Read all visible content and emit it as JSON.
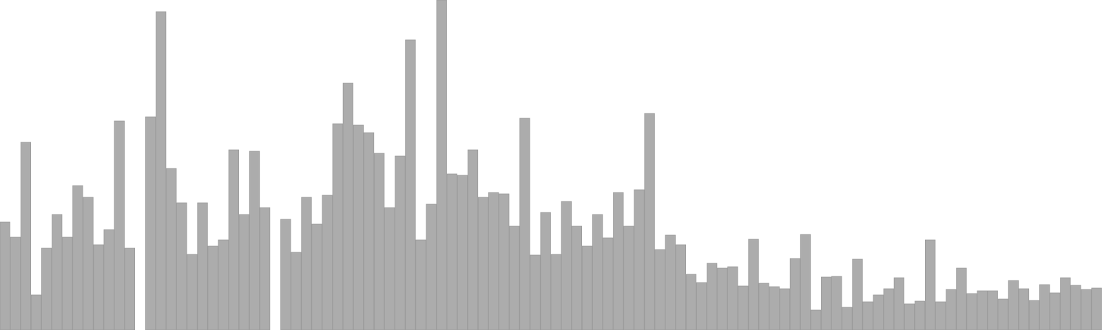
{
  "chart_data": {
    "type": "bar",
    "title": "",
    "xlabel": "",
    "ylabel": "",
    "bar_color": "#acacac",
    "bar_stroke": "#9a9a9a",
    "background": "#ffffff",
    "grid": false,
    "legend": "none",
    "ylim": [
      0,
      480
    ],
    "values": [
      157,
      135,
      273,
      51,
      119,
      168,
      135,
      210,
      193,
      124,
      146,
      304,
      119,
      0,
      310,
      463,
      235,
      185,
      110,
      185,
      122,
      131,
      262,
      168,
      260,
      178,
      0,
      161,
      113,
      193,
      154,
      196,
      300,
      359,
      298,
      287,
      257,
      178,
      253,
      422,
      131,
      183,
      480,
      227,
      225,
      262,
      193,
      200,
      198,
      151,
      308,
      109,
      171,
      110,
      187,
      151,
      122,
      168,
      134,
      200,
      151,
      204,
      315,
      117,
      138,
      124,
      81,
      69,
      97,
      90,
      92,
      64,
      132,
      68,
      63,
      60,
      104,
      139,
      29,
      77,
      78,
      33,
      103,
      41,
      51,
      60,
      76,
      38,
      42,
      131,
      41,
      59,
      90,
      53,
      57,
      57,
      45,
      72,
      60,
      43,
      66,
      54,
      76,
      65,
      59,
      61
    ]
  }
}
